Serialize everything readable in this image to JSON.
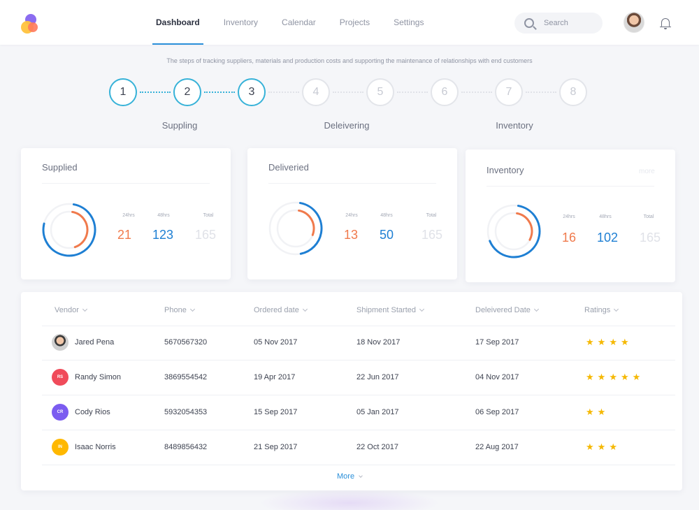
{
  "nav": {
    "items": [
      {
        "label": "Dashboard",
        "active": true
      },
      {
        "label": "Inventory",
        "active": false
      },
      {
        "label": "Calendar",
        "active": false
      },
      {
        "label": "Projects",
        "active": false
      },
      {
        "label": "Settings",
        "active": false
      }
    ]
  },
  "search": {
    "placeholder": "Search"
  },
  "subtitle": "The steps of tracking suppliers, materials and production costs and supporting the maintenance of relationships with end customers",
  "steps": {
    "numbers": [
      "1",
      "2",
      "3",
      "4",
      "5",
      "6",
      "7",
      "8"
    ],
    "completed": 3,
    "phases": [
      "Suppling",
      "Deleivering",
      "Inventory"
    ]
  },
  "cards": [
    {
      "title": "Supplied",
      "more": "",
      "labels": [
        "24hrs",
        "48hrs",
        "Total"
      ],
      "values": [
        "21",
        "123",
        "165"
      ],
      "progress_24": 0.42,
      "progress_48": 0.76
    },
    {
      "title": "Deliveried",
      "more": "",
      "labels": [
        "24hrs",
        "48hrs",
        "Total"
      ],
      "values": [
        "13",
        "50",
        "165"
      ],
      "progress_24": 0.28,
      "progress_48": 0.44
    },
    {
      "title": "Inventory",
      "more": "more",
      "labels": [
        "24hrs",
        "48hrs",
        "Total"
      ],
      "values": [
        "16",
        "102",
        "165"
      ],
      "progress_24": 0.3,
      "progress_48": 0.66
    }
  ],
  "table": {
    "headers": [
      "Vendor",
      "Phone",
      "Ordered date",
      "Shipment Started",
      "Deleivered Date",
      "Ratings"
    ],
    "rows": [
      {
        "vendor": "Jared Pena",
        "initials": "",
        "avatar_color": "",
        "phone": "5670567320",
        "ordered": "05 Nov 2017",
        "shipment": "18 Nov 2017",
        "delivered": "17 Sep 2017",
        "rating": 4
      },
      {
        "vendor": "Randy Simon",
        "initials": "RS",
        "avatar_color": "#f04b5a",
        "phone": "3869554542",
        "ordered": "19 Apr 2017",
        "shipment": "22 Jun 2017",
        "delivered": "04 Nov 2017",
        "rating": 5
      },
      {
        "vendor": "Cody Rios",
        "initials": "CR",
        "avatar_color": "#7b5cf0",
        "phone": "5932054353",
        "ordered": "15 Sep 2017",
        "shipment": "05 Jan 2017",
        "delivered": "06 Sep 2017",
        "rating": 2
      },
      {
        "vendor": "Isaac Norris",
        "initials": "IN",
        "avatar_color": "#ffb800",
        "phone": "8489856432",
        "ordered": "21 Sep 2017",
        "shipment": "22 Oct 2017",
        "delivered": "22 Aug 2017",
        "rating": 3
      }
    ],
    "more_label": "More"
  },
  "colors": {
    "accent": "#2a8fd9",
    "step_done": "#37b2d8",
    "ring_orange": "#f07a4c",
    "ring_blue": "#1e7fd3",
    "star": "#f5b800"
  }
}
